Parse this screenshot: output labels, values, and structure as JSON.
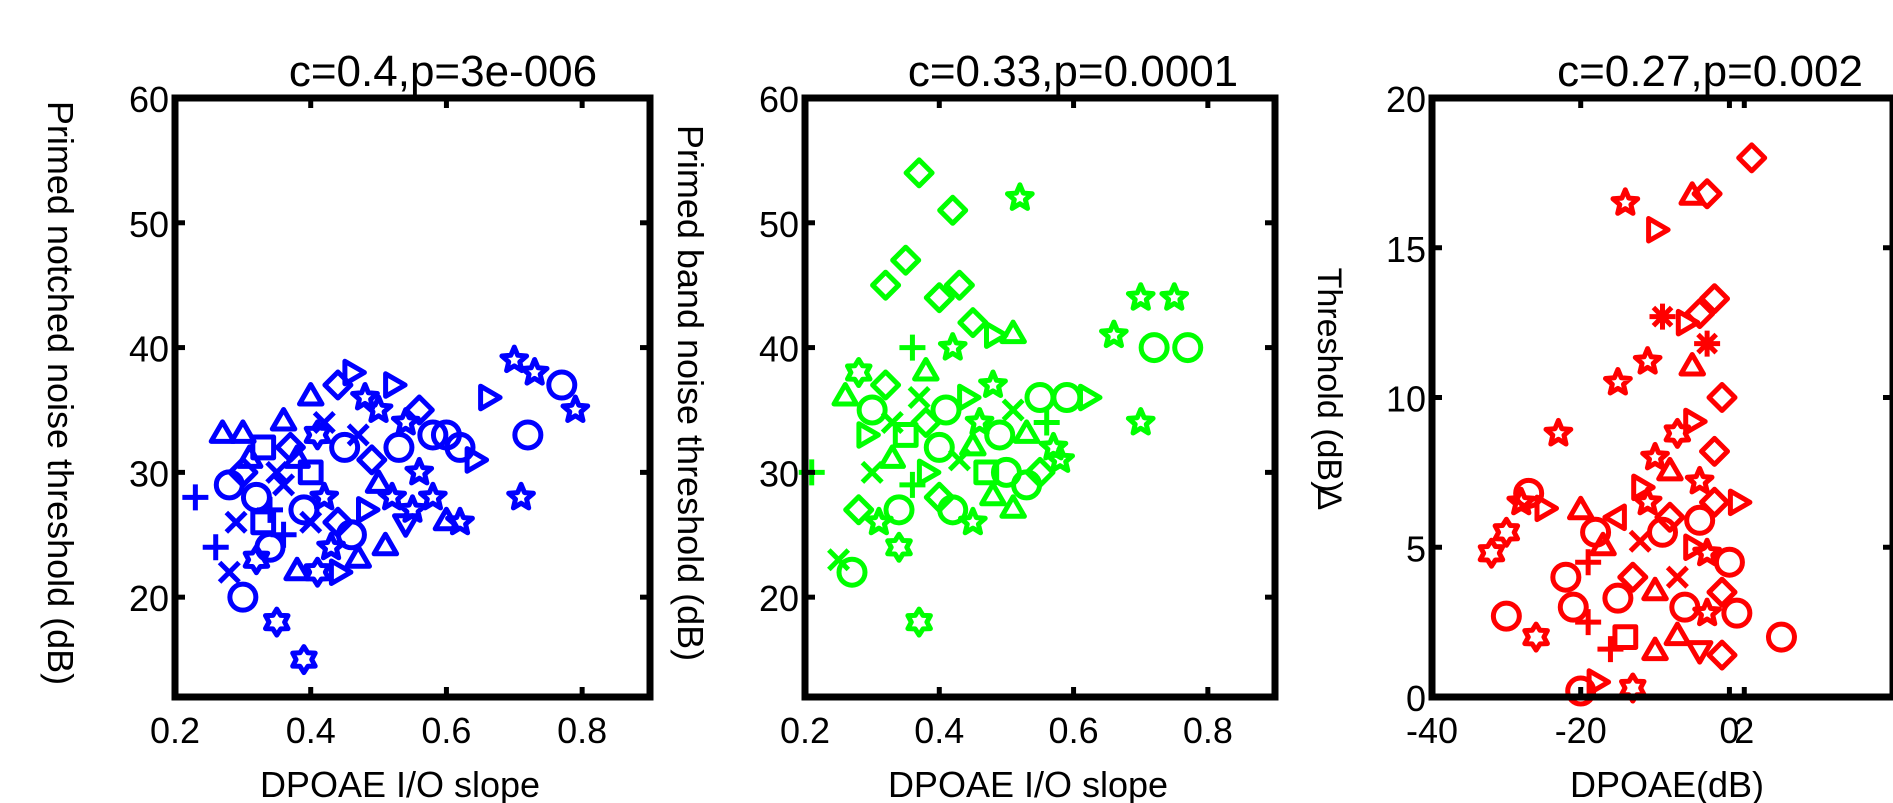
{
  "chart_data": [
    {
      "type": "scatter",
      "title": "c=0.4,p=3e-006",
      "xlabel": "DPOAE I/O slope",
      "ylabel": "Primed notched noise threshold (dB)",
      "xlim": [
        0.2,
        0.9
      ],
      "ylim": [
        12,
        60
      ],
      "xticks": [
        "0.2",
        "0.4",
        "0.6",
        "0.8"
      ],
      "yticks": [
        "20",
        "30",
        "40",
        "50",
        "60"
      ],
      "color": "#0000ff",
      "grid": false,
      "legend": "none",
      "points": [
        [
          0.23,
          28,
          "plus"
        ],
        [
          0.26,
          24,
          "plus"
        ],
        [
          0.28,
          22,
          "x"
        ],
        [
          0.3,
          20,
          "o"
        ],
        [
          0.32,
          23,
          "hex"
        ],
        [
          0.35,
          18,
          "hex"
        ],
        [
          0.39,
          15,
          "hex"
        ],
        [
          0.27,
          33,
          "tri-up"
        ],
        [
          0.3,
          33,
          "tri-up"
        ],
        [
          0.33,
          32,
          "square"
        ],
        [
          0.36,
          34,
          "tri-up"
        ],
        [
          0.4,
          36,
          "tri-up"
        ],
        [
          0.42,
          34,
          "x"
        ],
        [
          0.44,
          37,
          "diamond"
        ],
        [
          0.46,
          38,
          "tri-right"
        ],
        [
          0.48,
          36,
          "star"
        ],
        [
          0.5,
          35,
          "star"
        ],
        [
          0.52,
          37,
          "tri-right"
        ],
        [
          0.54,
          34,
          "star"
        ],
        [
          0.56,
          35,
          "diamond"
        ],
        [
          0.58,
          33,
          "o"
        ],
        [
          0.6,
          33,
          "o"
        ],
        [
          0.62,
          32,
          "o"
        ],
        [
          0.64,
          31,
          "tri-right"
        ],
        [
          0.58,
          28,
          "star"
        ],
        [
          0.55,
          27,
          "star"
        ],
        [
          0.6,
          26,
          "tri-up"
        ],
        [
          0.62,
          26,
          "star"
        ],
        [
          0.71,
          28,
          "star"
        ],
        [
          0.72,
          33,
          "o"
        ],
        [
          0.7,
          39,
          "star"
        ],
        [
          0.73,
          38,
          "star"
        ],
        [
          0.77,
          37,
          "o"
        ],
        [
          0.79,
          35,
          "star"
        ],
        [
          0.66,
          36,
          "tri-right"
        ],
        [
          0.3,
          30,
          "diamond"
        ],
        [
          0.32,
          28,
          "o"
        ],
        [
          0.34,
          27,
          "plus"
        ],
        [
          0.36,
          29,
          "x"
        ],
        [
          0.38,
          31,
          "tri-up"
        ],
        [
          0.4,
          30,
          "square"
        ],
        [
          0.42,
          28,
          "star"
        ],
        [
          0.44,
          26,
          "diamond"
        ],
        [
          0.46,
          25,
          "o"
        ],
        [
          0.48,
          27,
          "tri-right"
        ],
        [
          0.5,
          29,
          "tri-up"
        ],
        [
          0.52,
          28,
          "star"
        ],
        [
          0.54,
          26,
          "tri-down"
        ],
        [
          0.4,
          26,
          "x"
        ],
        [
          0.36,
          25,
          "plus"
        ],
        [
          0.34,
          24,
          "o"
        ],
        [
          0.38,
          22,
          "tri-up"
        ],
        [
          0.41,
          22,
          "hex"
        ],
        [
          0.44,
          22,
          "tri-right"
        ],
        [
          0.29,
          26,
          "x"
        ],
        [
          0.31,
          31,
          "tri-up"
        ],
        [
          0.37,
          32,
          "diamond"
        ],
        [
          0.45,
          32,
          "o"
        ],
        [
          0.49,
          31,
          "diamond"
        ],
        [
          0.51,
          24,
          "tri-up"
        ],
        [
          0.47,
          23,
          "tri-up"
        ],
        [
          0.43,
          24,
          "star"
        ],
        [
          0.39,
          27,
          "o"
        ],
        [
          0.35,
          30,
          "x"
        ],
        [
          0.33,
          26,
          "square"
        ],
        [
          0.28,
          29,
          "o"
        ],
        [
          0.47,
          33,
          "x"
        ],
        [
          0.53,
          32,
          "o"
        ],
        [
          0.56,
          30,
          "star"
        ],
        [
          0.41,
          33,
          "hex"
        ]
      ]
    },
    {
      "type": "scatter",
      "title": "c=0.33,p=0.0001",
      "xlabel": "DPOAE I/O slope",
      "ylabel": "Primed band noise threshold (dB)",
      "xlim": [
        0.2,
        0.9
      ],
      "ylim": [
        12,
        60
      ],
      "xticks": [
        "0.2",
        "0.4",
        "0.6",
        "0.8"
      ],
      "yticks": [
        "20",
        "30",
        "40",
        "50",
        "60"
      ],
      "color": "#00ff00",
      "grid": false,
      "legend": "none",
      "points": [
        [
          0.21,
          30,
          "plus"
        ],
        [
          0.25,
          23,
          "x"
        ],
        [
          0.27,
          22,
          "o"
        ],
        [
          0.34,
          24,
          "hex"
        ],
        [
          0.37,
          18,
          "hex"
        ],
        [
          0.37,
          54,
          "diamond"
        ],
        [
          0.42,
          51,
          "diamond"
        ],
        [
          0.52,
          52,
          "star"
        ],
        [
          0.32,
          45,
          "diamond"
        ],
        [
          0.35,
          47,
          "diamond"
        ],
        [
          0.4,
          44,
          "diamond"
        ],
        [
          0.43,
          45,
          "diamond"
        ],
        [
          0.45,
          42,
          "diamond"
        ],
        [
          0.48,
          41,
          "tri-right"
        ],
        [
          0.51,
          41,
          "tri-up"
        ],
        [
          0.36,
          40,
          "plus"
        ],
        [
          0.38,
          38,
          "tri-up"
        ],
        [
          0.42,
          40,
          "star"
        ],
        [
          0.28,
          38,
          "hex"
        ],
        [
          0.26,
          36,
          "tri-up"
        ],
        [
          0.3,
          35,
          "o"
        ],
        [
          0.33,
          34,
          "x"
        ],
        [
          0.35,
          33,
          "square"
        ],
        [
          0.38,
          34,
          "diamond"
        ],
        [
          0.41,
          35,
          "o"
        ],
        [
          0.44,
          36,
          "tri-right"
        ],
        [
          0.46,
          34,
          "star"
        ],
        [
          0.49,
          33,
          "o"
        ],
        [
          0.51,
          35,
          "x"
        ],
        [
          0.53,
          33,
          "tri-up"
        ],
        [
          0.55,
          36,
          "o"
        ],
        [
          0.57,
          32,
          "star"
        ],
        [
          0.59,
          36,
          "o"
        ],
        [
          0.62,
          36,
          "tri-right"
        ],
        [
          0.66,
          41,
          "star"
        ],
        [
          0.7,
          44,
          "star"
        ],
        [
          0.75,
          44,
          "star"
        ],
        [
          0.72,
          40,
          "o"
        ],
        [
          0.77,
          40,
          "o"
        ],
        [
          0.7,
          34,
          "star"
        ],
        [
          0.5,
          30,
          "o"
        ],
        [
          0.48,
          28,
          "tri-up"
        ],
        [
          0.45,
          26,
          "star"
        ],
        [
          0.42,
          27,
          "o"
        ],
        [
          0.4,
          28,
          "diamond"
        ],
        [
          0.36,
          29,
          "plus"
        ],
        [
          0.33,
          31,
          "tri-up"
        ],
        [
          0.3,
          30,
          "x"
        ],
        [
          0.28,
          27,
          "diamond"
        ],
        [
          0.31,
          26,
          "star"
        ],
        [
          0.34,
          27,
          "o"
        ],
        [
          0.38,
          30,
          "tri-right"
        ],
        [
          0.43,
          31,
          "x"
        ],
        [
          0.47,
          30,
          "square"
        ],
        [
          0.51,
          27,
          "tri-up"
        ],
        [
          0.55,
          30,
          "diamond"
        ],
        [
          0.58,
          31,
          "star"
        ],
        [
          0.4,
          32,
          "o"
        ],
        [
          0.45,
          32,
          "tri-up"
        ],
        [
          0.53,
          29,
          "o"
        ],
        [
          0.37,
          36,
          "x"
        ],
        [
          0.32,
          37,
          "diamond"
        ],
        [
          0.48,
          37,
          "star"
        ],
        [
          0.56,
          34,
          "plus"
        ],
        [
          0.29,
          33,
          "tri-right"
        ]
      ]
    },
    {
      "type": "scatter",
      "title": "c=0.27,p=0.002",
      "xlabel": "DPOAE(dB)",
      "ylabel": "Threshold (dB)",
      "ylabel_glyph": "Δ",
      "xlim": [
        -40,
        22
      ],
      "ylim": [
        0,
        20
      ],
      "xticks": [
        "-40",
        "-20",
        "0",
        "2"
      ],
      "yticks": [
        "0",
        "5",
        "10",
        "15",
        "20"
      ],
      "color": "#ff0000",
      "grid": false,
      "legend": "none",
      "points": [
        [
          -20,
          0.2,
          "o"
        ],
        [
          -18,
          0.5,
          "tri-right"
        ],
        [
          -13,
          0.3,
          "hex"
        ],
        [
          -26,
          2.0,
          "hex"
        ],
        [
          -30,
          2.7,
          "o"
        ],
        [
          -21,
          3.0,
          "o"
        ],
        [
          -19,
          2.5,
          "plus"
        ],
        [
          -16,
          1.6,
          "plus"
        ],
        [
          -14,
          2.0,
          "square"
        ],
        [
          -10,
          1.5,
          "tri-up"
        ],
        [
          -7,
          2.0,
          "tri-up"
        ],
        [
          -4,
          1.6,
          "tri-down"
        ],
        [
          -1,
          1.4,
          "diamond"
        ],
        [
          1,
          2.8,
          "o"
        ],
        [
          7,
          2.0,
          "o"
        ],
        [
          -32,
          4.8,
          "hex"
        ],
        [
          -30,
          5.5,
          "hex"
        ],
        [
          -28,
          6.5,
          "star"
        ],
        [
          -27,
          6.8,
          "o"
        ],
        [
          -25,
          6.3,
          "tri-right"
        ],
        [
          -22,
          4.0,
          "o"
        ],
        [
          -19,
          4.5,
          "plus"
        ],
        [
          -17,
          5.0,
          "tri-up"
        ],
        [
          -15,
          6.0,
          "tri-left"
        ],
        [
          -13,
          4.0,
          "diamond"
        ],
        [
          -11,
          6.5,
          "star"
        ],
        [
          -9,
          5.5,
          "o"
        ],
        [
          -7,
          4.0,
          "x"
        ],
        [
          -5,
          5.0,
          "tri-right"
        ],
        [
          -3,
          4.8,
          "star"
        ],
        [
          -1,
          3.5,
          "diamond"
        ],
        [
          0,
          4.5,
          "o"
        ],
        [
          -2,
          6.5,
          "diamond"
        ],
        [
          1,
          6.5,
          "tri-right"
        ],
        [
          -4,
          7.2,
          "star"
        ],
        [
          -2,
          8.2,
          "diamond"
        ],
        [
          -8,
          7.5,
          "tri-up"
        ],
        [
          -12,
          7.0,
          "tri-right"
        ],
        [
          -10,
          8.0,
          "star"
        ],
        [
          -7,
          8.8,
          "hex"
        ],
        [
          -5,
          9.2,
          "tri-right"
        ],
        [
          -1,
          10.0,
          "diamond"
        ],
        [
          -23,
          8.8,
          "star"
        ],
        [
          -15,
          10.5,
          "star"
        ],
        [
          -11,
          11.2,
          "star"
        ],
        [
          -5,
          11.0,
          "tri-up"
        ],
        [
          -3,
          11.8,
          "asterisk"
        ],
        [
          -6,
          12.5,
          "tri-right"
        ],
        [
          -4,
          12.8,
          "diamond"
        ],
        [
          -2,
          13.3,
          "diamond"
        ],
        [
          -9,
          12.7,
          "asterisk"
        ],
        [
          -14,
          16.5,
          "star"
        ],
        [
          -10,
          15.6,
          "tri-right"
        ],
        [
          -5,
          16.7,
          "tri-up"
        ],
        [
          -3,
          16.8,
          "diamond"
        ],
        [
          3,
          18.0,
          "diamond"
        ],
        [
          -18,
          5.5,
          "o"
        ],
        [
          -6,
          3.0,
          "o"
        ],
        [
          -10,
          3.5,
          "tri-up"
        ],
        [
          -3,
          2.8,
          "star"
        ],
        [
          -15,
          3.3,
          "o"
        ],
        [
          -8,
          6.0,
          "diamond"
        ],
        [
          -12,
          5.2,
          "x"
        ],
        [
          -4,
          5.9,
          "o"
        ],
        [
          -20,
          6.2,
          "tri-up"
        ]
      ]
    }
  ]
}
